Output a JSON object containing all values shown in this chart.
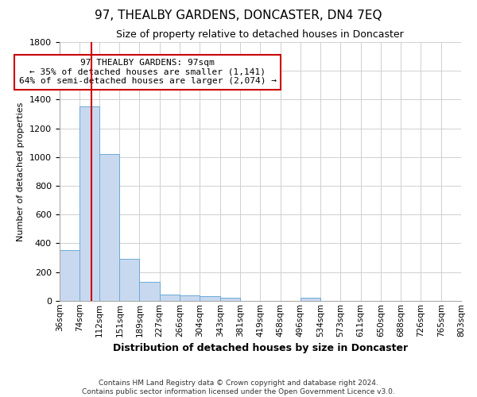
{
  "title": "97, THEALBY GARDENS, DONCASTER, DN4 7EQ",
  "subtitle": "Size of property relative to detached houses in Doncaster",
  "xlabel": "Distribution of detached houses by size in Doncaster",
  "ylabel": "Number of detached properties",
  "footer_line1": "Contains HM Land Registry data © Crown copyright and database right 2024.",
  "footer_line2": "Contains public sector information licensed under the Open Government Licence v3.0.",
  "bar_edges": [
    36,
    74,
    112,
    151,
    189,
    227,
    266,
    304,
    343,
    381,
    419,
    458,
    496,
    534,
    573,
    611,
    650,
    688,
    726,
    765,
    803
  ],
  "bar_heights": [
    355,
    1355,
    1020,
    290,
    130,
    43,
    35,
    30,
    20,
    0,
    0,
    0,
    20,
    0,
    0,
    0,
    0,
    0,
    0,
    0
  ],
  "bar_color": "#c8d9ef",
  "bar_edge_color": "#6aaad4",
  "grid_color": "#d0d0d0",
  "vline_x": 97,
  "vline_color": "#cc0000",
  "ylim": [
    0,
    1800
  ],
  "annotation_text": "97 THEALBY GARDENS: 97sqm\n← 35% of detached houses are smaller (1,141)\n64% of semi-detached houses are larger (2,074) →",
  "annotation_box_edgecolor": "#cc0000",
  "tick_labels": [
    "36sqm",
    "74sqm",
    "112sqm",
    "151sqm",
    "189sqm",
    "227sqm",
    "266sqm",
    "304sqm",
    "343sqm",
    "381sqm",
    "419sqm",
    "458sqm",
    "496sqm",
    "534sqm",
    "573sqm",
    "611sqm",
    "650sqm",
    "688sqm",
    "726sqm",
    "765sqm",
    "803sqm"
  ],
  "title_fontsize": 11,
  "subtitle_fontsize": 9,
  "ylabel_fontsize": 8,
  "xlabel_fontsize": 9,
  "tick_fontsize": 7.5,
  "footer_fontsize": 6.5
}
